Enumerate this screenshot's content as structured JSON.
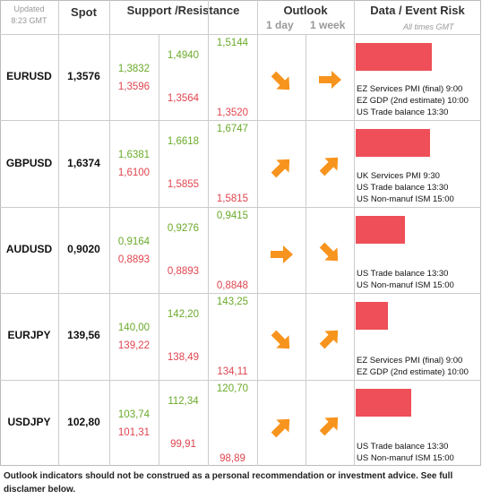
{
  "header": {
    "updated": "Updated",
    "time": "8:23 GMT",
    "spot": "Spot",
    "levels": "Support /Resistance",
    "outlook": "Outlook",
    "day": "1 day",
    "week": "1 week",
    "risk": "Data / Event Risk",
    "times": "All times GMT"
  },
  "risk_scale": [
    0,
    100
  ],
  "rows": [
    {
      "pair": "EURUSD",
      "spot": "1,3576",
      "levels": [
        [
          "1,3832",
          "1,3596"
        ],
        [
          "1,4940",
          "1,3564"
        ],
        [
          "1,5144",
          "1,3520"
        ]
      ],
      "day": "down",
      "week": "flat",
      "risk": 61,
      "events": [
        "EZ Services PMI (final) 9:00",
        "EZ GDP (2nd estimate) 10:00",
        "US Trade balance 13:30"
      ]
    },
    {
      "pair": "GBPUSD",
      "spot": "1,6374",
      "levels": [
        [
          "1,6381",
          "1,6100"
        ],
        [
          "1,6618",
          "1,5855"
        ],
        [
          "1,6747",
          "1,5815"
        ]
      ],
      "day": "up",
      "week": "up",
      "risk": 59,
      "events": [
        "UK Services PMI 9:30",
        "US Trade balance 13:30",
        "US Non-manuf ISM 15:00"
      ]
    },
    {
      "pair": "AUDUSD",
      "spot": "0,9020",
      "levels": [
        [
          "0,9164",
          "0,8893"
        ],
        [
          "0,9276",
          "0,8893"
        ],
        [
          "0,9415",
          "0,8848"
        ]
      ],
      "day": "flat",
      "week": "down",
      "risk": 39,
      "events": [
        "US Trade balance 13:30",
        "US Non-manuf ISM 15:00"
      ]
    },
    {
      "pair": "EURJPY",
      "spot": "139,56",
      "levels": [
        [
          "140,00",
          "139,22"
        ],
        [
          "142,20",
          "138,49"
        ],
        [
          "143,25",
          "134,11"
        ]
      ],
      "day": "down",
      "week": "up",
      "risk": 26,
      "events": [
        "EZ Services PMI (final) 9:00",
        "EZ GDP (2nd estimate) 10:00"
      ]
    },
    {
      "pair": "USDJPY",
      "spot": "102,80",
      "levels": [
        [
          "103,74",
          "101,31"
        ],
        [
          "112,34",
          "99,91"
        ],
        [
          "120,70",
          "98,89"
        ]
      ],
      "day": "up",
      "week": "up",
      "risk": 44,
      "events": [
        "US Trade balance 13:30",
        "US Non-manuf ISM 15:00"
      ]
    }
  ],
  "footer": "Outlook indicators should not be construed as a personal recommendation or investment advice. See full disclamer below."
}
